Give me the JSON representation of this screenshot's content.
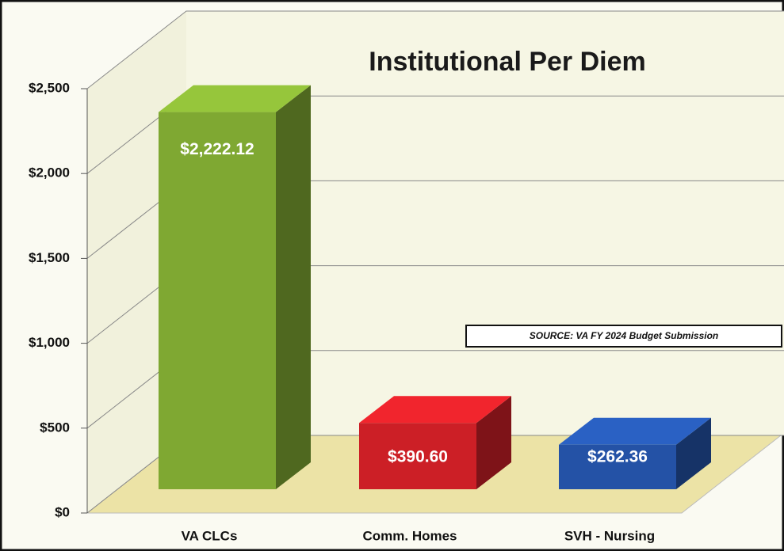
{
  "chart_data": {
    "type": "bar3d",
    "title": "Institutional Per Diem",
    "annotation": "SOURCE: VA FY 2024 Budget Submission",
    "categories": [
      "VA CLCs",
      "Comm. Homes",
      "SVH - Nursing"
    ],
    "values": [
      2222.12,
      390.6,
      262.36
    ],
    "value_labels": [
      "$2,222.12",
      "$390.60",
      "$262.36"
    ],
    "colors": [
      "#7fa832",
      "#cc1f26",
      "#2452a6"
    ],
    "ylim": [
      0,
      2500
    ],
    "yticks": [
      {
        "value": 0,
        "label": "$0"
      },
      {
        "value": 500,
        "label": "$500"
      },
      {
        "value": 1000,
        "label": "$1,000"
      },
      {
        "value": 1500,
        "label": "$1,500"
      },
      {
        "value": 2000,
        "label": "$2,000"
      },
      {
        "value": 2500,
        "label": "$2,500"
      }
    ],
    "grid": true
  }
}
